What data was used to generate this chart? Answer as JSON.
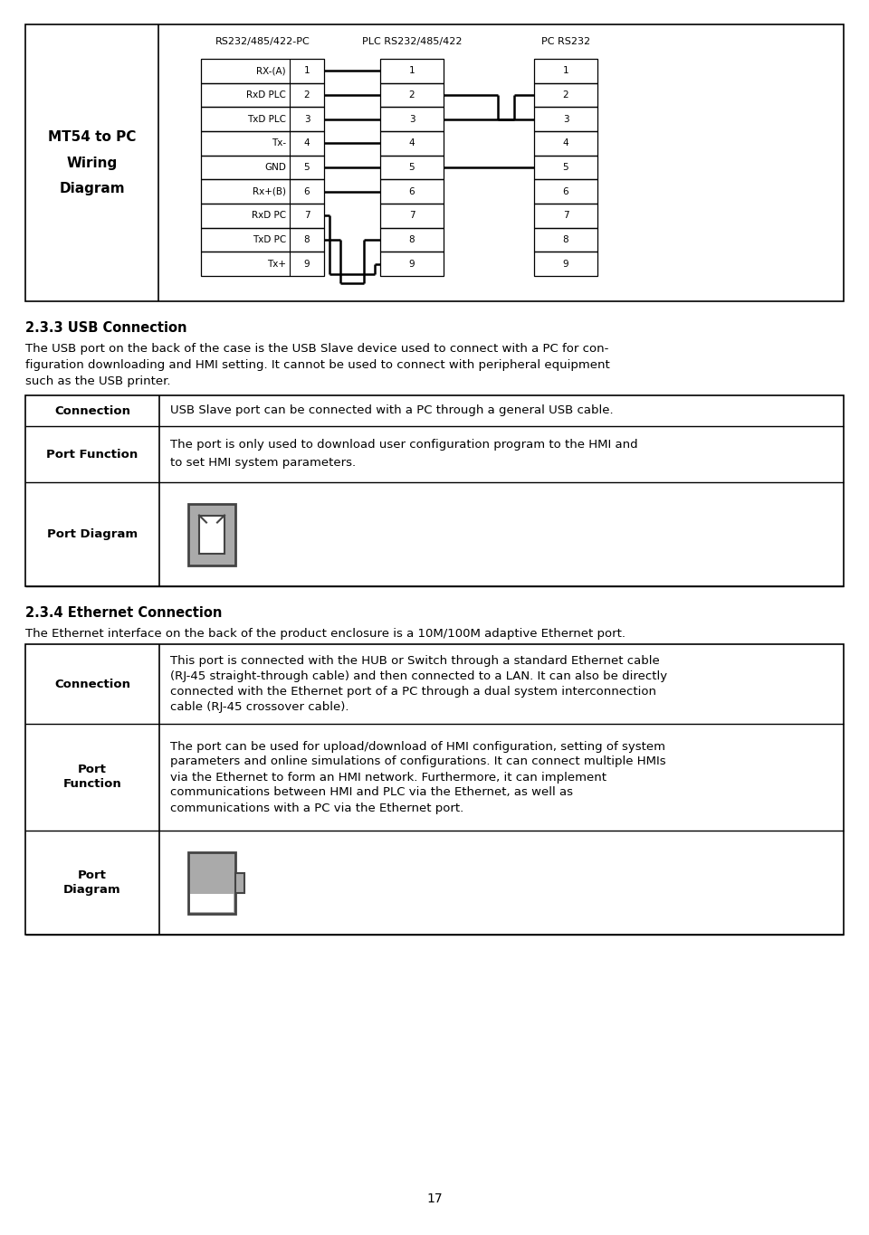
{
  "bg_color": "#ffffff",
  "text_color": "#000000",
  "page_number": "17",
  "section_233_title": "2.3.3 USB Connection",
  "section_233_body1": "The USB port on the back of the case is the USB Slave device used to connect with a PC for con-",
  "section_233_body2": "figuration downloading and HMI setting. It cannot be used to connect with peripheral equipment",
  "section_233_body3": "such as the USB printer.",
  "section_234_title": "2.3.4 Ethernet Connection",
  "section_234_body": "The Ethernet interface on the back of the product enclosure is a 10M/100M adaptive Ethernet port.",
  "usb_row1_label": "Connection",
  "usb_row1_content": "USB Slave port can be connected with a PC through a general USB cable.",
  "usb_row2_label": "Port Function",
  "usb_row2_content1": "The port is only used to download user configuration program to the HMI and",
  "usb_row2_content2": "to set HMI system parameters.",
  "usb_row3_label": "Port Diagram",
  "eth_row1_label": "Connection",
  "eth_row1_c1": "This port is connected with the HUB or Switch through a standard Ethernet cable",
  "eth_row1_c2": "(RJ-45 straight-through cable) and then connected to a LAN. It can also be directly",
  "eth_row1_c3": "connected with the Ethernet port of a PC through a dual system interconnection",
  "eth_row1_c4": "cable (RJ-45 crossover cable).",
  "eth_row2_label1": "Port",
  "eth_row2_label2": "Function",
  "eth_row2_c1": "The port can be used for upload/download of HMI configuration, setting of system",
  "eth_row2_c2": "parameters and online simulations of configurations. It can connect multiple HMIs",
  "eth_row2_c3": "via the Ethernet to form an HMI network. Furthermore, it can implement",
  "eth_row2_c4": "communications between HMI and PLC via the Ethernet, as well as",
  "eth_row2_c5": "communications with a PC via the Ethernet port.",
  "eth_row3_label1": "Port",
  "eth_row3_label2": "Diagram",
  "wiring_pins": [
    "RX-(A)",
    "RxD PLC",
    "TxD PLC",
    "Tx-",
    "GND",
    "Rx+(B)",
    "RxD PC",
    "TxD PC",
    "Tx+"
  ],
  "wiring_nums": [
    1,
    2,
    3,
    4,
    5,
    6,
    7,
    8,
    9
  ],
  "col1_header": "RS232/485/422-PC",
  "col2_header": "PLC RS232/485/422",
  "col3_header": "PC RS232",
  "gray_color": "#aaaaaa",
  "dark_gray": "#666666",
  "icon_border": "#444444"
}
